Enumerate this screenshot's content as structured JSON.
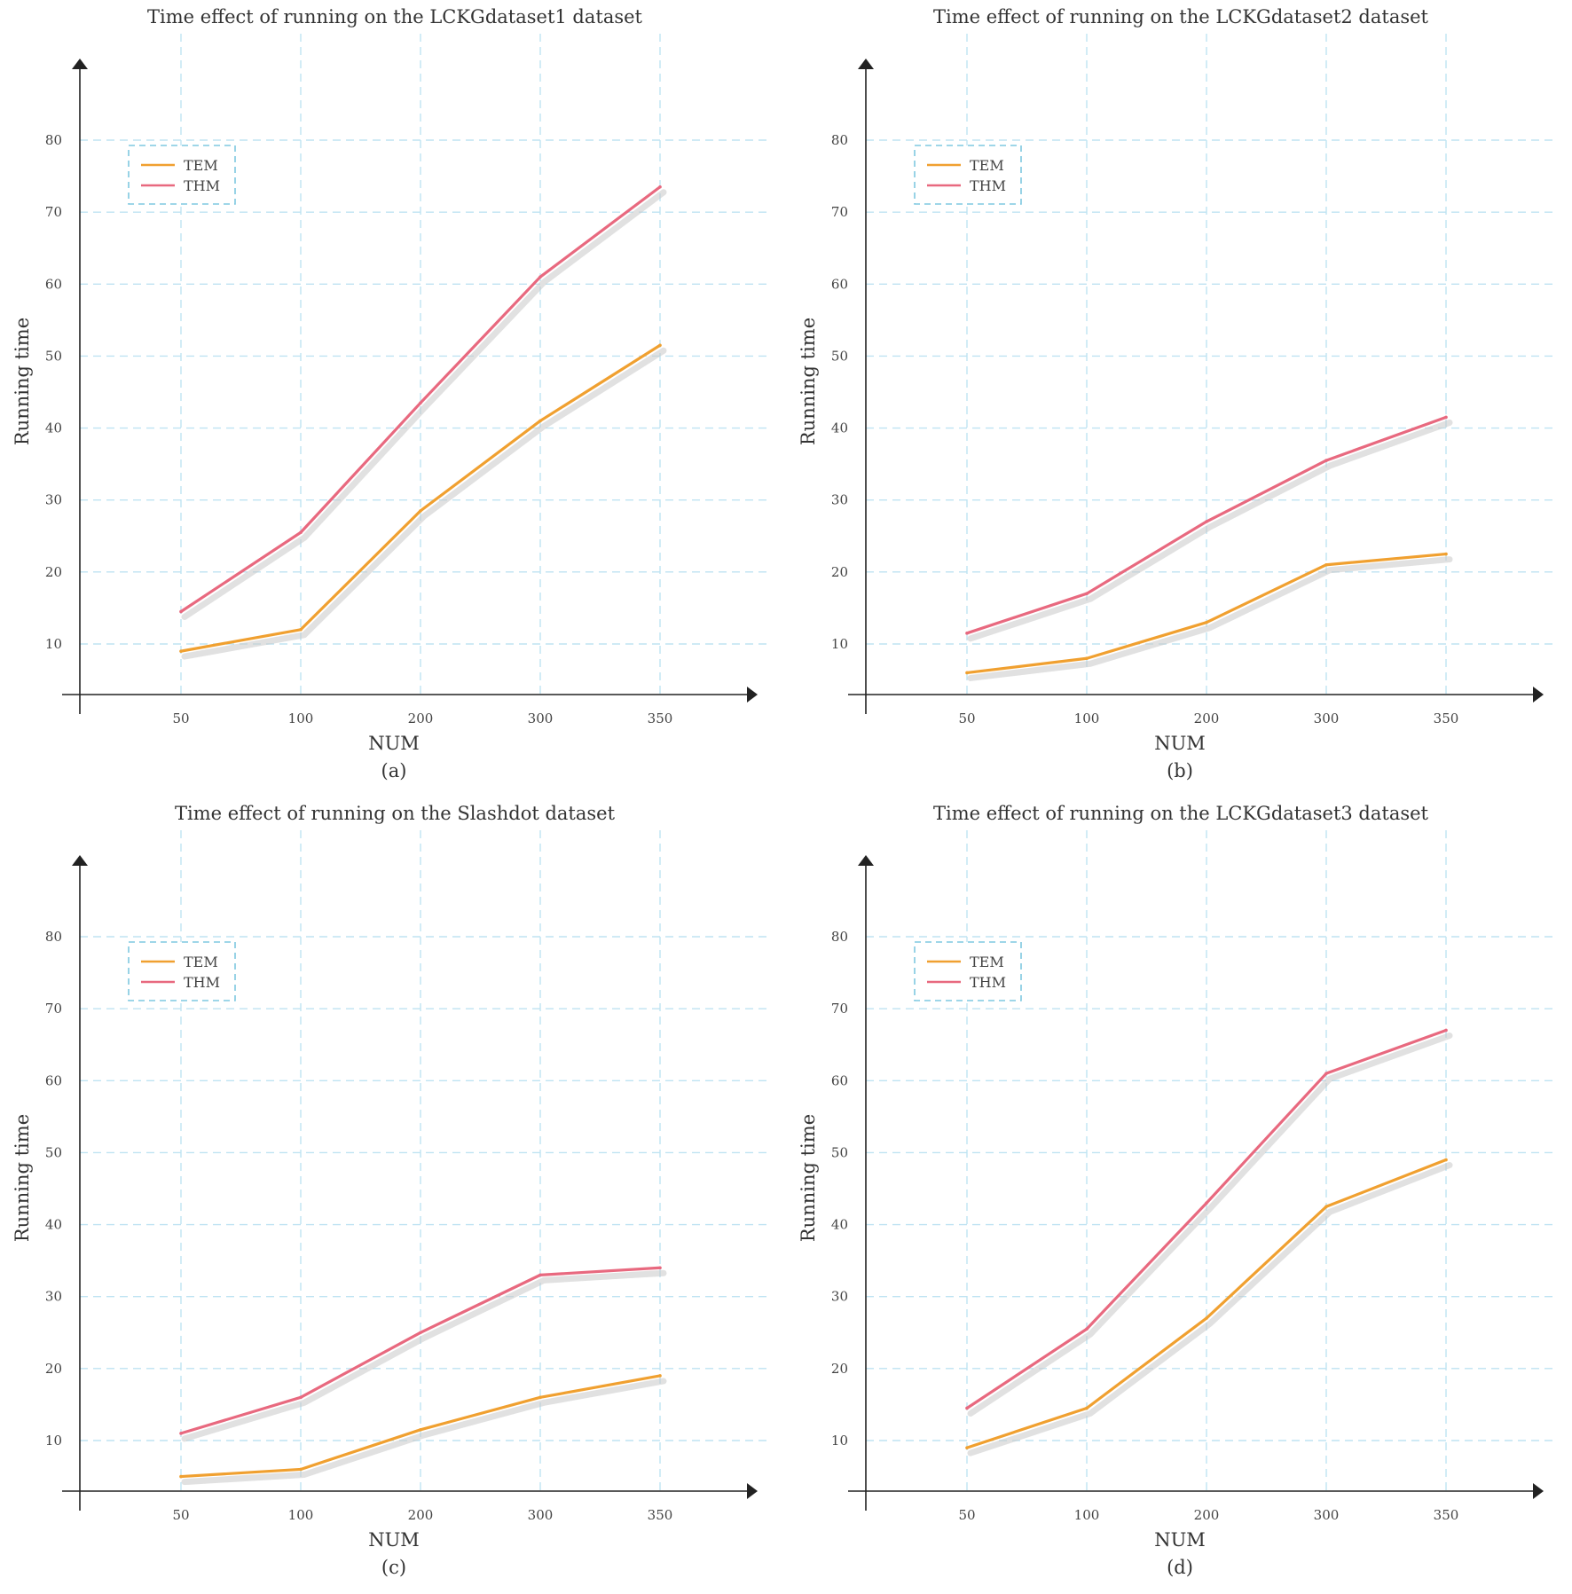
{
  "chart_data": [
    {
      "type": "line",
      "title": "Time effect of running on the LCKGdataset1 dataset",
      "subtitle": "(a)",
      "xlabel": "NUM",
      "ylabel": "Running time",
      "categories": [
        "50",
        "100",
        "200",
        "300",
        "350"
      ],
      "yticks": [
        "10",
        "20",
        "30",
        "40",
        "50",
        "60",
        "70",
        "80"
      ],
      "ylim": [
        3,
        90
      ],
      "grid": true,
      "legend_position": "top-left",
      "series": [
        {
          "name": "TEM",
          "values": [
            9,
            12,
            28.5,
            41,
            51.5
          ],
          "color": "#f0a030"
        },
        {
          "name": "THM",
          "values": [
            14.5,
            25.5,
            43.5,
            61,
            73.5
          ],
          "color": "#e8697f"
        }
      ]
    },
    {
      "type": "line",
      "title": "Time effect of running on the LCKGdataset2 dataset",
      "subtitle": "(b)",
      "xlabel": "NUM",
      "ylabel": "Running time",
      "categories": [
        "50",
        "100",
        "200",
        "300",
        "350"
      ],
      "yticks": [
        "10",
        "20",
        "30",
        "40",
        "50",
        "60",
        "70",
        "80"
      ],
      "ylim": [
        3,
        90
      ],
      "grid": true,
      "legend_position": "top-left",
      "series": [
        {
          "name": "TEM",
          "values": [
            6,
            8,
            13,
            21,
            22.5
          ],
          "color": "#f0a030"
        },
        {
          "name": "THM",
          "values": [
            11.5,
            17,
            27,
            35.5,
            41.5
          ],
          "color": "#e8697f"
        }
      ]
    },
    {
      "type": "line",
      "title": "Time effect of running on the Slashdot dataset",
      "subtitle": "(c)",
      "xlabel": "NUM",
      "ylabel": "Running time",
      "categories": [
        "50",
        "100",
        "200",
        "300",
        "350"
      ],
      "yticks": [
        "10",
        "20",
        "30",
        "40",
        "50",
        "60",
        "70",
        "80"
      ],
      "ylim": [
        3,
        90
      ],
      "grid": true,
      "legend_position": "top-left",
      "series": [
        {
          "name": "TEM",
          "values": [
            5,
            6,
            11.5,
            16,
            19
          ],
          "color": "#f0a030"
        },
        {
          "name": "THM",
          "values": [
            11,
            16,
            25,
            33,
            34
          ],
          "color": "#e8697f"
        }
      ]
    },
    {
      "type": "line",
      "title": "Time effect of running on the LCKGdataset3 dataset",
      "subtitle": "(d)",
      "xlabel": "NUM",
      "ylabel": "Running time",
      "categories": [
        "50",
        "100",
        "200",
        "300",
        "350"
      ],
      "yticks": [
        "10",
        "20",
        "30",
        "40",
        "50",
        "60",
        "70",
        "80"
      ],
      "ylim": [
        3,
        90
      ],
      "grid": true,
      "legend_position": "top-left",
      "series": [
        {
          "name": "TEM",
          "values": [
            9,
            14.5,
            27,
            42.5,
            49
          ],
          "color": "#f0a030"
        },
        {
          "name": "THM",
          "values": [
            14.5,
            25.5,
            43,
            61,
            67
          ],
          "color": "#e8697f"
        }
      ]
    }
  ]
}
